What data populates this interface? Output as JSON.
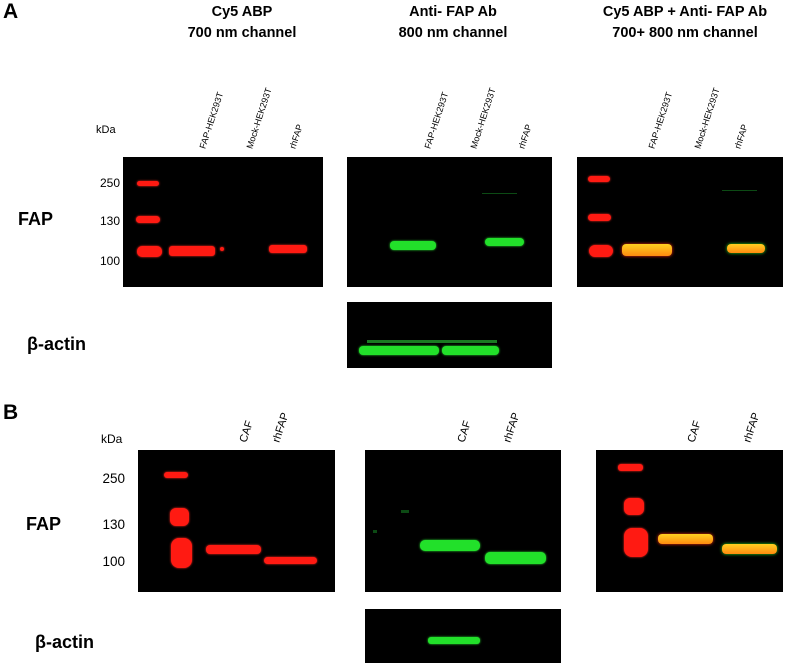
{
  "panels": {
    "a": {
      "letter": "A",
      "titles": [
        {
          "line1": "Cy5 ABP",
          "line2": "700 nm channel"
        },
        {
          "line1": "Anti- FAP Ab",
          "line2": "800 nm channel"
        },
        {
          "line1": "Cy5 ABP + Anti- FAP Ab",
          "line2": "700+ 800 nm channel"
        }
      ],
      "kda_label": "kDa",
      "markers": [
        "250",
        "130",
        "100"
      ],
      "lanes": [
        "FAP-HEK293T",
        "Mock-HEK293T",
        "rhFAP"
      ],
      "row_labels": {
        "fap": "FAP",
        "actin": "β-actin"
      }
    },
    "b": {
      "letter": "B",
      "kda_label": "kDa",
      "markers": [
        "250",
        "130",
        "100"
      ],
      "lanes": [
        "CAF",
        "rhFAP"
      ],
      "row_labels": {
        "fap": "FAP",
        "actin": "β-actin"
      }
    }
  },
  "colors": {
    "channel_700": "#ff1a12",
    "channel_800": "#22e02a",
    "overlay": "#ffd020",
    "blot_bg": "#000000"
  }
}
